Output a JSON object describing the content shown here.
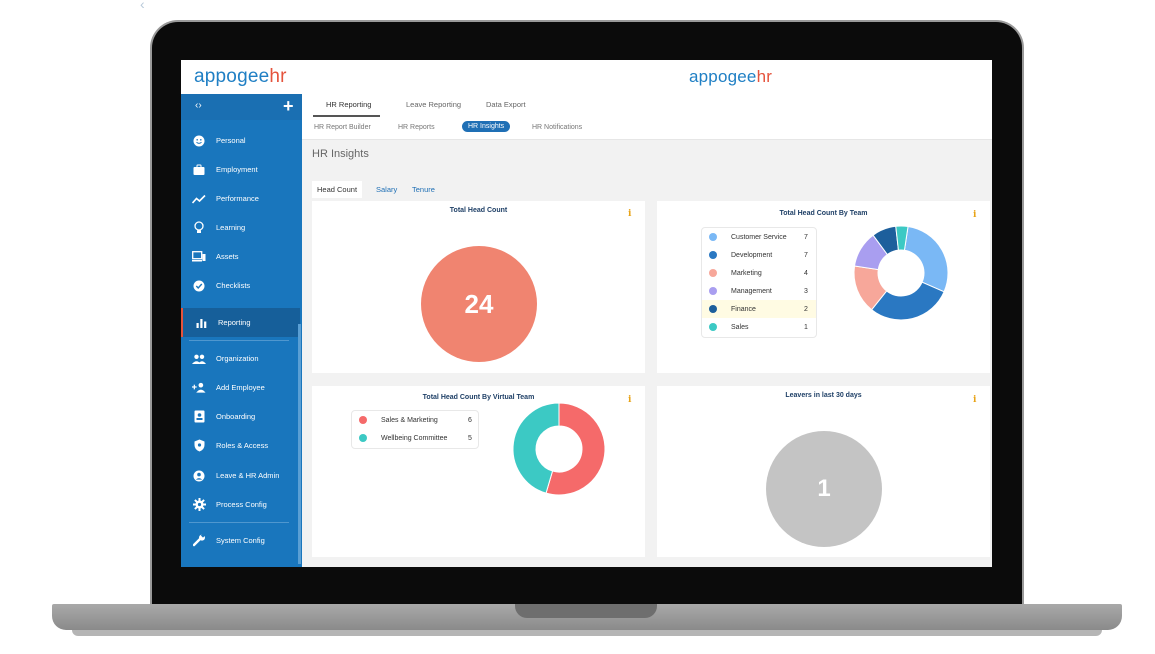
{
  "app": {
    "logo_part1": "appogee",
    "logo_part2": "hr"
  },
  "sidebar": {
    "items": [
      {
        "label": "Personal",
        "icon": "smiley-icon"
      },
      {
        "label": "Employment",
        "icon": "briefcase-icon"
      },
      {
        "label": "Performance",
        "icon": "trend-icon"
      },
      {
        "label": "Learning",
        "icon": "lightbulb-icon"
      },
      {
        "label": "Assets",
        "icon": "devices-icon"
      },
      {
        "label": "Checklists",
        "icon": "check-circle-icon"
      },
      {
        "label": "Reporting",
        "icon": "bar-chart-icon"
      },
      {
        "label": "Organization",
        "icon": "people-icon"
      },
      {
        "label": "Add Employee",
        "icon": "add-person-icon"
      },
      {
        "label": "Onboarding",
        "icon": "id-card-icon"
      },
      {
        "label": "Roles & Access",
        "icon": "shield-icon"
      },
      {
        "label": "Leave & HR Admin",
        "icon": "account-circle-icon"
      },
      {
        "label": "Process Config",
        "icon": "gear-icon"
      },
      {
        "label": "System Config",
        "icon": "wrench-icon"
      }
    ],
    "active": "Reporting"
  },
  "tabs_primary": [
    "HR Reporting",
    "Leave Reporting",
    "Data Export"
  ],
  "tabs_secondary": [
    "HR Report Builder",
    "HR Reports",
    "HR Insights",
    "HR Notifications"
  ],
  "page_title": "HR Insights",
  "insight_tabs": [
    "Head Count",
    "Salary",
    "Tenure"
  ],
  "cards": {
    "total": {
      "title": "Total Head Count",
      "value": "24",
      "color": "#f08470"
    },
    "team": {
      "title": "Total Head Count By Team"
    },
    "virtual": {
      "title": "Total Head Count By Virtual Team"
    },
    "leavers": {
      "title": "Leavers in last 30 days",
      "value": "1",
      "color": "#c4c4c4"
    }
  },
  "info_icon": "i",
  "chart_data": [
    {
      "type": "pie",
      "title": "Total Head Count By Team",
      "categories": [
        "Customer Service",
        "Development",
        "Marketing",
        "Management",
        "Finance",
        "Sales"
      ],
      "values": [
        7,
        7,
        4,
        3,
        2,
        1
      ],
      "colors": [
        "#7ab8f5",
        "#2a78c2",
        "#f7a79a",
        "#a99ef0",
        "#1d5f9c",
        "#3cc9c4"
      ],
      "legend": "left",
      "highlighted": "Finance"
    },
    {
      "type": "pie",
      "title": "Total Head Count By Virtual Team",
      "categories": [
        "Sales & Marketing",
        "Wellbeing Committee"
      ],
      "values": [
        6,
        5
      ],
      "colors": [
        "#f56a6a",
        "#3cc9c4"
      ],
      "legend": "left"
    }
  ]
}
